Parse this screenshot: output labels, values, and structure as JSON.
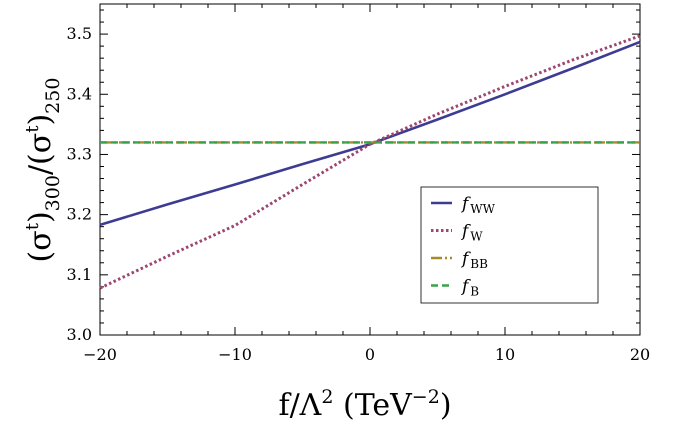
{
  "chart_data": {
    "type": "line",
    "xlim": [
      -20,
      20
    ],
    "ylim": [
      3.0,
      3.55
    ],
    "x_ticks": [
      -20,
      -10,
      0,
      10,
      20
    ],
    "x_tick_labels": [
      "−20",
      "−10",
      "0",
      "10",
      "20"
    ],
    "y_ticks": [
      3.0,
      3.1,
      3.2,
      3.3,
      3.4,
      3.5
    ],
    "y_tick_labels": [
      "3.0",
      "3.1",
      "3.2",
      "3.3",
      "3.4",
      "3.5"
    ],
    "xlabel": "f/Λ² (TeV⁻²)",
    "ylabel": "(σᵗ)₃₀₀/(σᵗ)₂₅₀",
    "grid": false,
    "legend_position": "right",
    "series": [
      {
        "name": "fWW",
        "label_main": "f",
        "label_sub": "WW",
        "color": "#3e3c92",
        "style": "solid",
        "x": [
          -20,
          -15,
          -10,
          -5,
          0,
          5,
          10,
          15,
          20
        ],
        "y": [
          3.183,
          3.217,
          3.25,
          3.284,
          3.317,
          3.358,
          3.4,
          3.443,
          3.487
        ]
      },
      {
        "name": "fW",
        "label_main": "f",
        "label_sub": "W",
        "color": "#9c4670",
        "style": "dotted",
        "x": [
          -20,
          -15,
          -10,
          -5,
          0,
          5,
          10,
          15,
          20
        ],
        "y": [
          3.078,
          3.131,
          3.182,
          3.25,
          3.317,
          3.367,
          3.413,
          3.457,
          3.497
        ]
      },
      {
        "name": "fBB",
        "label_main": "f",
        "label_sub": "BB",
        "color": "#a88a2a",
        "style": "dashdot",
        "x": [
          -20,
          20
        ],
        "y": [
          3.32,
          3.32
        ]
      },
      {
        "name": "fB",
        "label_main": "f",
        "label_sub": "B",
        "color": "#3aa14a",
        "style": "dashed",
        "x": [
          -20,
          20
        ],
        "y": [
          3.32,
          3.32
        ]
      }
    ]
  }
}
